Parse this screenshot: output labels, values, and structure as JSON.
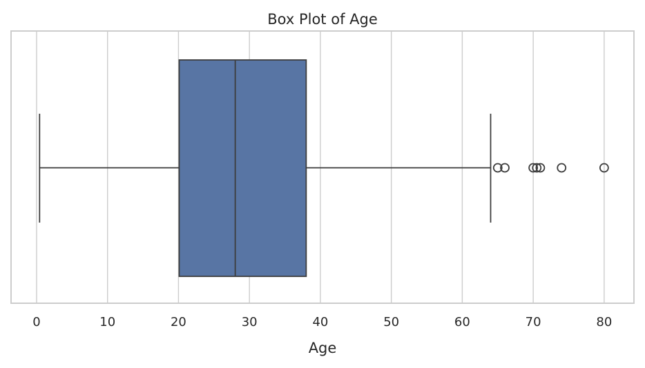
{
  "chart_data": {
    "type": "box",
    "title": "Box Plot of Age",
    "xlabel": "Age",
    "ylabel": "",
    "xlim": [
      -3.6,
      84.2
    ],
    "xticks": [
      0,
      10,
      20,
      30,
      40,
      50,
      60,
      70,
      80
    ],
    "grid": "vertical",
    "box": {
      "whisker_low": 0.42,
      "q1": 20.1,
      "median": 28.0,
      "q3": 38.0,
      "whisker_high": 64.0,
      "outliers": [
        65.0,
        66.0,
        70.0,
        70.5,
        71.0,
        74.0,
        80.0
      ]
    },
    "colors": {
      "box_fill": "#5875a4",
      "box_edge": "#3d3d3d",
      "grid": "#cccccc",
      "frame": "#cccccc"
    }
  }
}
